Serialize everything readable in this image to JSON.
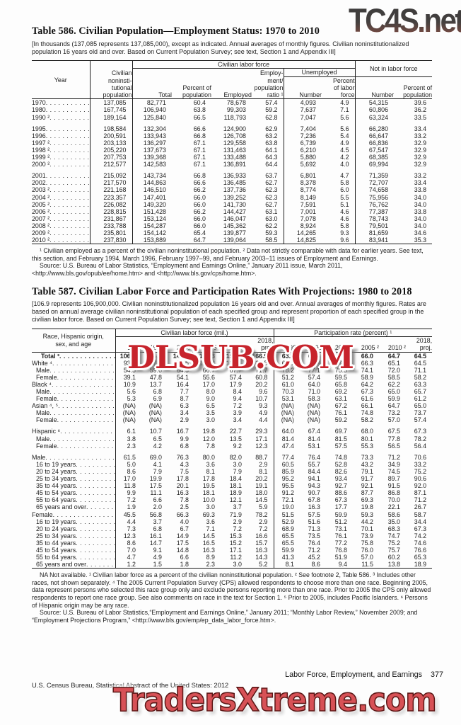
{
  "watermarks": {
    "top": "TC4S.net",
    "middle": "DLSUB.COM",
    "bottom": "TradersXtreme.com",
    "red": "#c7242c",
    "bottom_red": "#d75156",
    "top_dark": "#3b3b3b"
  },
  "page_footer": {
    "section": "Labor Force, Employment, and Earnings",
    "page_number": "377",
    "source_line": "U.S. Census Bureau, Statistical Abstract of the United States: 2012"
  },
  "table586": {
    "title": "Table 586. Civilian Population—Employment Status: 1970 to 2010",
    "headnote": "[In thousands (137,085 represents 137,085,000), except as indicated. Annual averages of monthly figures. Civilian noninstitutionalized population 16 years old and over. Based on Current Population Survey; see text, Section 1 and Appendix III]",
    "header": {
      "year": "Year",
      "civ_pop": "Civilian\nnoninsti-\ntutional\npopulation",
      "group_clf": "Civilian labor force",
      "group_nilf": "Not in labor force",
      "total": "Total",
      "pct_pop": "Percent of\npopulation",
      "employed": "Employed",
      "ratio": "Employ-\nment/\npopulation\nratio ¹",
      "unemployed": "Unemployed",
      "number": "Number",
      "pct_labor_force": "Percent\nof labor\nforce",
      "number2": "Number",
      "pct_pop2": "Percent of\npopulation"
    },
    "rows": [
      {
        "label": "1970",
        "cells": [
          "137,085",
          "82,771",
          "60.4",
          "78,678",
          "57.4",
          "4,093",
          "4.9",
          "54,315",
          "39.6"
        ]
      },
      {
        "label": "1980",
        "cells": [
          "167,745",
          "106,940",
          "63.8",
          "99,303",
          "59.2",
          "7,637",
          "7.1",
          "60,806",
          "36.2"
        ]
      },
      {
        "label": "1990 ²",
        "cells": [
          "189,164",
          "125,840",
          "66.5",
          "118,793",
          "62.8",
          "7,047",
          "5.6",
          "63,324",
          "33.5"
        ]
      },
      {
        "label": "1995",
        "gap": true,
        "cells": [
          "198,584",
          "132,304",
          "66.6",
          "124,900",
          "62.9",
          "7,404",
          "5.6",
          "66,280",
          "33.4"
        ]
      },
      {
        "label": "1996",
        "cells": [
          "200,591",
          "133,943",
          "66.8",
          "126,708",
          "63.2",
          "7,236",
          "5.4",
          "66,647",
          "33.2"
        ]
      },
      {
        "label": "1997 ²",
        "cells": [
          "203,133",
          "136,297",
          "67.1",
          "129,558",
          "63.8",
          "6,739",
          "4.9",
          "66,836",
          "32.9"
        ]
      },
      {
        "label": "1998 ²",
        "cells": [
          "205,220",
          "137,673",
          "67.1",
          "131,463",
          "64.1",
          "6,210",
          "4.5",
          "67,547",
          "32.9"
        ]
      },
      {
        "label": "1999 ²",
        "cells": [
          "207,753",
          "139,368",
          "67.1",
          "133,488",
          "64.3",
          "5,880",
          "4.2",
          "68,385",
          "32.9"
        ]
      },
      {
        "label": "2000 ²",
        "cells": [
          "212,577",
          "142,583",
          "67.1",
          "136,891",
          "64.4",
          "5,692",
          "4.0",
          "69,994",
          "32.9"
        ]
      },
      {
        "label": "2001",
        "gap": true,
        "cells": [
          "215,092",
          "143,734",
          "66.8",
          "136,933",
          "63.7",
          "6,801",
          "4.7",
          "71,359",
          "33.2"
        ]
      },
      {
        "label": "2002",
        "cells": [
          "217,570",
          "144,863",
          "66.6",
          "136,485",
          "62.7",
          "8,378",
          "5.8",
          "72,707",
          "33.4"
        ]
      },
      {
        "label": "2003 ²",
        "cells": [
          "221,168",
          "146,510",
          "66.2",
          "137,736",
          "62.3",
          "8,774",
          "6.0",
          "74,658",
          "33.8"
        ]
      },
      {
        "label": "2004 ²",
        "cells": [
          "223,357",
          "147,401",
          "66.0",
          "139,252",
          "62.3",
          "8,149",
          "5.5",
          "75,956",
          "34.0"
        ]
      },
      {
        "label": "2005 ²",
        "cells": [
          "226,082",
          "149,320",
          "66.0",
          "141,730",
          "62.7",
          "7,591",
          "5.1",
          "76,762",
          "34.0"
        ]
      },
      {
        "label": "2006 ²",
        "cells": [
          "228,815",
          "151,428",
          "66.2",
          "144,427",
          "63.1",
          "7,001",
          "4.6",
          "77,387",
          "33.8"
        ]
      },
      {
        "label": "2007 ²",
        "cells": [
          "231,867",
          "153,124",
          "66.0",
          "146,047",
          "63.0",
          "7,078",
          "4.6",
          "78,743",
          "34.0"
        ]
      },
      {
        "label": "2008 ²",
        "cells": [
          "233,788",
          "154,287",
          "66.0",
          "145,362",
          "62.2",
          "8,924",
          "5.8",
          "79,501",
          "34.0"
        ]
      },
      {
        "label": "2009 ²",
        "cells": [
          "235,801",
          "154,142",
          "65.4",
          "139,877",
          "59.3",
          "14,265",
          "9.3",
          "81,659",
          "34.6"
        ]
      },
      {
        "label": "2010 ²",
        "cells": [
          "237,830",
          "153,889",
          "64.7",
          "139,064",
          "58.5",
          "14,825",
          "9.6",
          "83,941",
          "35.3"
        ]
      }
    ],
    "footnotes": [
      "¹ Civilian employed as a percent of the civilian noninstitutional population. ² Data not strictly comparable with data for earlier years. See text, this section, and February 1994, March 1996, February 1997–99, and February 2003–11 issues of Employment and Earnings.",
      "Source: U.S. Bureau of Labor Statistics, “Employment and Earnings Online,” January 2011 issue, March 2011, <http://www.bls.gov/opub/ee/home.htm> and <http://www.bls.gov/cps/home.htm>."
    ]
  },
  "table587": {
    "title": "Table 587. Civilian Labor Force and Participation Rates With Projections: 1980 to 2018",
    "headnote": "[106.9 represents 106,900,000. Civilian noninstitutionalized population 16 years old and over. Annual averages of monthly figures. Rates are based on annual average civilian noninstitutional population of each specified group and represent proportion of each specified group in the civilian labor force. Based on Current Population Survey; see text, Section 1 and Appendix III]",
    "header": {
      "stub": "Race, Hispanic origin,\nsex, and age",
      "group_left": "Civilian labor force (mil.)",
      "group_right": "Participation rate (percent) ¹",
      "years": [
        "1980",
        "1990 ²",
        "2000 ²",
        "2005 ²",
        "2010 ²",
        "2018,\nproj."
      ]
    },
    "rows": [
      {
        "label": "Total ³",
        "bold": true,
        "indent": 2,
        "cells": [
          "106.9",
          "125.8",
          "142.6",
          "149.3",
          "153.9",
          "166.9",
          "63.8",
          "66.5",
          "67.1",
          "66.0",
          "64.7",
          "64.5"
        ]
      },
      {
        "label": "White ⁴",
        "indent": 0,
        "cells": [
          "93.6",
          "107.4",
          "118.5",
          "122.3",
          "125.1",
          "132.5",
          "64.1",
          "66.9",
          "67.3",
          "66.3",
          "65.1",
          "64.5"
        ]
      },
      {
        "label": "Male",
        "indent": 1,
        "cells": [
          "54.5",
          "59.6",
          "64.5",
          "66.7",
          "67.7",
          "71.7",
          "78.2",
          "77.1",
          "75.5",
          "74.1",
          "72.0",
          "71.1"
        ]
      },
      {
        "label": "Female",
        "indent": 1,
        "cells": [
          "39.1",
          "47.8",
          "54.1",
          "55.6",
          "57.4",
          "60.8",
          "51.2",
          "57.4",
          "59.5",
          "58.9",
          "58.5",
          "58.2"
        ]
      },
      {
        "label": "Black ⁴",
        "indent": 0,
        "cells": [
          "10.9",
          "13.7",
          "16.4",
          "17.0",
          "17.9",
          "20.2",
          "61.0",
          "64.0",
          "65.8",
          "64.2",
          "62.2",
          "63.3"
        ]
      },
      {
        "label": "Male",
        "indent": 1,
        "cells": [
          "5.6",
          "6.8",
          "7.7",
          "8.0",
          "8.4",
          "9.6",
          "70.3",
          "71.0",
          "69.2",
          "67.3",
          "65.0",
          "65.7"
        ]
      },
      {
        "label": "Female",
        "indent": 1,
        "cells": [
          "5.3",
          "6.9",
          "8.7",
          "9.0",
          "9.4",
          "10.7",
          "53.1",
          "58.3",
          "63.1",
          "61.6",
          "59.9",
          "61.2"
        ]
      },
      {
        "label": "Asian ⁴, ⁵",
        "indent": 0,
        "cells": [
          "(NA)",
          "(NA)",
          "6.3",
          "6.5",
          "7.2",
          "9.3",
          "(NA)",
          "(NA)",
          "67.2",
          "66.1",
          "64.7",
          "65.0"
        ]
      },
      {
        "label": "Male",
        "indent": 1,
        "cells": [
          "(NA)",
          "(NA)",
          "3.4",
          "3.5",
          "3.9",
          "4.9",
          "(NA)",
          "(NA)",
          "76.1",
          "74.8",
          "73.2",
          "73.7"
        ]
      },
      {
        "label": "Female",
        "indent": 1,
        "cells": [
          "(NA)",
          "(NA)",
          "2.9",
          "3.0",
          "3.4",
          "4.4",
          "(NA)",
          "(NA)",
          "59.2",
          "58.2",
          "57.0",
          "57.4"
        ]
      },
      {
        "label": "Hispanic ⁶",
        "indent": 0,
        "gap": true,
        "cells": [
          "6.1",
          "10.7",
          "16.7",
          "19.8",
          "22.7",
          "29.3",
          "64.0",
          "67.4",
          "69.7",
          "68.0",
          "67.5",
          "67.3"
        ]
      },
      {
        "label": "Male",
        "indent": 1,
        "cells": [
          "3.8",
          "6.5",
          "9.9",
          "12.0",
          "13.5",
          "17.1",
          "81.4",
          "81.4",
          "81.5",
          "80.1",
          "77.8",
          "78.2"
        ]
      },
      {
        "label": "Female",
        "indent": 1,
        "cells": [
          "2.3",
          "4.2",
          "6.8",
          "7.8",
          "9.2",
          "12.3",
          "47.4",
          "53.1",
          "57.5",
          "55.3",
          "56.5",
          "56.4"
        ]
      },
      {
        "label": "Male",
        "indent": 0,
        "gap": true,
        "cells": [
          "61.5",
          "69.0",
          "76.3",
          "80.0",
          "82.0",
          "88.7",
          "77.4",
          "76.4",
          "74.8",
          "73.3",
          "71.2",
          "70.6"
        ]
      },
      {
        "label": "16 to 19 years",
        "indent": 1,
        "cells": [
          "5.0",
          "4.1",
          "4.3",
          "3.6",
          "3.0",
          "2.9",
          "60.5",
          "55.7",
          "52.8",
          "43.2",
          "34.9",
          "33.2"
        ]
      },
      {
        "label": "20 to 24 years",
        "indent": 1,
        "cells": [
          "8.6",
          "7.9",
          "7.5",
          "8.1",
          "7.9",
          "8.1",
          "85.9",
          "84.4",
          "82.6",
          "79.1",
          "74.5",
          "75.2"
        ]
      },
      {
        "label": "25 to 34 years",
        "indent": 1,
        "cells": [
          "17.0",
          "19.9",
          "17.8",
          "17.8",
          "18.4",
          "20.2",
          "95.2",
          "94.1",
          "93.4",
          "91.7",
          "89.7",
          "90.6"
        ]
      },
      {
        "label": "35 to 44 years",
        "indent": 1,
        "cells": [
          "11.8",
          "17.5",
          "20.1",
          "19.5",
          "18.1",
          "19.1",
          "95.5",
          "94.3",
          "92.7",
          "92.1",
          "91.5",
          "92.0"
        ]
      },
      {
        "label": "45 to 54 years",
        "indent": 1,
        "cells": [
          "9.9",
          "11.1",
          "16.3",
          "18.1",
          "18.9",
          "18.0",
          "91.2",
          "90.7",
          "88.6",
          "87.7",
          "86.8",
          "87.1"
        ]
      },
      {
        "label": "55 to 64 years",
        "indent": 1,
        "cells": [
          "7.2",
          "6.6",
          "7.8",
          "10.0",
          "12.1",
          "14.5",
          "72.1",
          "67.8",
          "67.3",
          "69.3",
          "70.0",
          "71.2"
        ]
      },
      {
        "label": "65 years and over",
        "indent": 1,
        "cells": [
          "1.9",
          "2.0",
          "2.5",
          "3.0",
          "3.7",
          "5.9",
          "19.0",
          "16.3",
          "17.7",
          "19.8",
          "22.1",
          "26.7"
        ]
      },
      {
        "label": "Female",
        "indent": 0,
        "cells": [
          "45.5",
          "56.8",
          "66.3",
          "69.3",
          "71.9",
          "78.2",
          "51.5",
          "57.5",
          "59.9",
          "59.3",
          "58.6",
          "58.7"
        ]
      },
      {
        "label": "16 to 19 years",
        "indent": 1,
        "cells": [
          "4.4",
          "3.7",
          "4.0",
          "3.6",
          "2.9",
          "2.9",
          "52.9",
          "51.6",
          "51.2",
          "44.2",
          "35.0",
          "34.4"
        ]
      },
      {
        "label": "20 to 24 years",
        "indent": 1,
        "cells": [
          "7.3",
          "6.8",
          "6.7",
          "7.1",
          "7.2",
          "7.2",
          "68.9",
          "71.3",
          "73.1",
          "70.1",
          "68.3",
          "67.3"
        ]
      },
      {
        "label": "25 to 34 years",
        "indent": 1,
        "cells": [
          "12.3",
          "16.1",
          "14.9",
          "14.5",
          "15.3",
          "16.6",
          "65.5",
          "73.5",
          "76.1",
          "73.9",
          "74.7",
          "74.2"
        ]
      },
      {
        "label": "35 to 44 years",
        "indent": 1,
        "cells": [
          "8.6",
          "14.7",
          "17.5",
          "16.5",
          "15.2",
          "15.7",
          "65.5",
          "76.4",
          "77.2",
          "75.8",
          "75.2",
          "74.6"
        ]
      },
      {
        "label": "45 to 54 years",
        "indent": 1,
        "cells": [
          "7.0",
          "9.1",
          "14.8",
          "16.3",
          "17.1",
          "16.3",
          "59.9",
          "71.2",
          "76.8",
          "76.0",
          "75.7",
          "76.6"
        ]
      },
      {
        "label": "55 to 64 years",
        "indent": 1,
        "cells": [
          "4.7",
          "4.9",
          "6.6",
          "8.9",
          "11.2",
          "14.3",
          "41.3",
          "45.2",
          "51.9",
          "57.0",
          "60.2",
          "65.3"
        ]
      },
      {
        "label": "65 years and over",
        "indent": 1,
        "cells": [
          "1.2",
          "1.5",
          "1.8",
          "2.3",
          "3.0",
          "5.2",
          "8.1",
          "8.6",
          "9.4",
          "11.5",
          "13.8",
          "18.9"
        ]
      }
    ],
    "footnotes": [
      "NA Not available. ¹ Civilian labor force as a percent of the civilian noninstitutional population. ² See footnote 2, Table 586. ³ Includes other races, not shown separately. ⁴ The 2005 Current Population Survey (CPS) allowed respondents to choose more than one race. Beginning 2005, data represent persons who selected this race group only and exclude persons reporting more than one race. Prior to 2005 the CPS only allowed respondents to report one race group. See also comments on race in the text for Section 1. ⁵ Prior to 2005, includes Pacific Islanders. ⁶ Persons of Hispanic origin may be any race.",
      "Source: U.S. Bureau of Labor Statistics,“Employment and Earnings Online,” January 2011; “Monthly Labor Review,” November 2009; and “Employment Projections Program,” <http://www.bls.gov/emp/ep_data_labor_force.htm>."
    ]
  }
}
